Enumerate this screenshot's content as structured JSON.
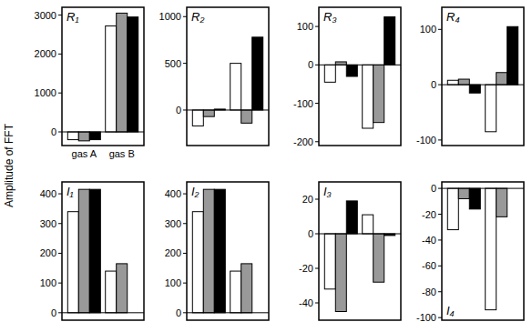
{
  "y_label": "Amplitude of FFT",
  "chart_data": [
    {
      "type": "bar",
      "title": "R₁",
      "categories": [
        "gas A",
        "gas B"
      ],
      "tick_labels": true,
      "series": [
        {
          "color": "#ffffff",
          "values": [
            -200,
            2720
          ]
        },
        {
          "color": "#999999",
          "values": [
            -230,
            3050
          ]
        },
        {
          "color": "#000000",
          "values": [
            -200,
            2950
          ]
        }
      ],
      "ylim": [
        -350,
        3200
      ],
      "yticks": [
        0,
        1000,
        2000,
        3000
      ]
    },
    {
      "type": "bar",
      "title": "R₂",
      "categories": [
        "gas A",
        "gas B"
      ],
      "tick_labels": "y",
      "series": [
        {
          "color": "#ffffff",
          "values": [
            -170,
            500
          ]
        },
        {
          "color": "#999999",
          "values": [
            -70,
            -140
          ]
        },
        {
          "color": "#000000",
          "values": [
            10,
            780
          ]
        }
      ],
      "ylim": [
        -380,
        1100
      ],
      "yticks": [
        0,
        500,
        1000
      ]
    },
    {
      "type": "bar",
      "title": "R₃",
      "categories": [
        "gas A",
        "gas B"
      ],
      "tick_labels": "y",
      "series": [
        {
          "color": "#ffffff",
          "values": [
            -45,
            -165
          ]
        },
        {
          "color": "#999999",
          "values": [
            8,
            -150
          ]
        },
        {
          "color": "#000000",
          "values": [
            -30,
            125
          ]
        }
      ],
      "ylim": [
        -210,
        150
      ],
      "yticks": [
        -200,
        -100,
        0,
        100
      ]
    },
    {
      "type": "bar",
      "title": "R₄",
      "categories": [
        "gas A",
        "gas B"
      ],
      "tick_labels": "y",
      "series": [
        {
          "color": "#ffffff",
          "values": [
            8,
            -85
          ]
        },
        {
          "color": "#999999",
          "values": [
            10,
            22
          ]
        },
        {
          "color": "#000000",
          "values": [
            -15,
            105
          ]
        }
      ],
      "ylim": [
        -110,
        140
      ],
      "yticks": [
        -100,
        0,
        100
      ]
    },
    {
      "type": "bar",
      "title": "I₁",
      "categories": [
        "gas A",
        "gas B"
      ],
      "tick_labels": "y",
      "series": [
        {
          "color": "#ffffff",
          "values": [
            340,
            140
          ]
        },
        {
          "color": "#999999",
          "values": [
            415,
            165
          ]
        },
        {
          "color": "#000000",
          "values": [
            415,
            null
          ]
        }
      ],
      "ylim": [
        -25,
        440
      ],
      "yticks": [
        0,
        100,
        200,
        300,
        400
      ]
    },
    {
      "type": "bar",
      "title": "I₂",
      "categories": [
        "gas A",
        "gas B"
      ],
      "tick_labels": "y",
      "series": [
        {
          "color": "#ffffff",
          "values": [
            340,
            140
          ]
        },
        {
          "color": "#999999",
          "values": [
            415,
            165
          ]
        },
        {
          "color": "#000000",
          "values": [
            415,
            null
          ]
        }
      ],
      "ylim": [
        -25,
        440
      ],
      "yticks": [
        0,
        100,
        200,
        300,
        400
      ]
    },
    {
      "type": "bar",
      "title": "I₃",
      "categories": [
        "gas A",
        "gas B"
      ],
      "tick_labels": "y",
      "series": [
        {
          "color": "#ffffff",
          "values": [
            -32,
            11
          ]
        },
        {
          "color": "#999999",
          "values": [
            -45,
            -28
          ]
        },
        {
          "color": "#000000",
          "values": [
            19,
            -1
          ]
        }
      ],
      "ylim": [
        -50,
        30
      ],
      "yticks": [
        -40,
        -20,
        0,
        20
      ]
    },
    {
      "type": "bar",
      "title": "I₄",
      "categories": [
        "gas A",
        "gas B"
      ],
      "tick_labels": "y",
      "series": [
        {
          "color": "#ffffff",
          "values": [
            -32,
            -94
          ]
        },
        {
          "color": "#999999",
          "values": [
            -8,
            -22
          ]
        },
        {
          "color": "#000000",
          "values": [
            -16,
            null
          ]
        }
      ],
      "ylim": [
        -102,
        5
      ],
      "yticks": [
        -100,
        -80,
        -60,
        -40,
        -20,
        0
      ]
    }
  ]
}
